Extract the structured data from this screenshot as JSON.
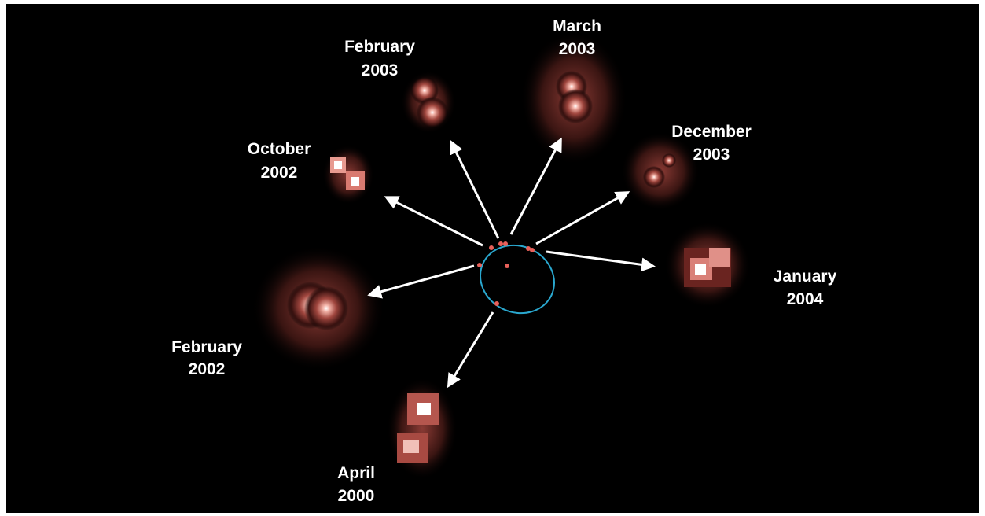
{
  "snapshots": [
    {
      "month": "March",
      "year": "2003"
    },
    {
      "month": "February",
      "year": "2003"
    },
    {
      "month": "October",
      "year": "2002"
    },
    {
      "month": "December",
      "year": "2003"
    },
    {
      "month": "January",
      "year": "2004"
    },
    {
      "month": "February",
      "year": "2002"
    },
    {
      "month": "April",
      "year": "2000"
    }
  ]
}
